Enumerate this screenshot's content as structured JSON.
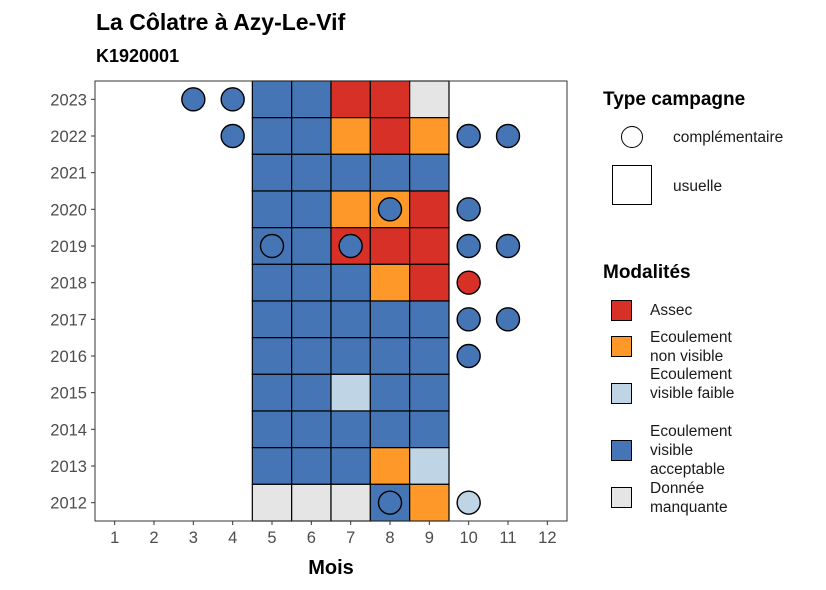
{
  "chart_data": {
    "type": "heatmap",
    "title": "La Côlatre à Azy-Le-Vif",
    "subtitle": "K1920001",
    "xlabel": "Mois",
    "ylabel": "",
    "x_ticks": [
      "1",
      "2",
      "3",
      "4",
      "5",
      "6",
      "7",
      "8",
      "9",
      "10",
      "11",
      "12"
    ],
    "y_ticks": [
      "2012",
      "2013",
      "2014",
      "2015",
      "2016",
      "2017",
      "2018",
      "2019",
      "2020",
      "2021",
      "2022",
      "2023"
    ],
    "xlim": [
      0.5,
      12.5
    ],
    "ylim": [
      2011.5,
      2023.5
    ],
    "colors": {
      "Assec": "#d73027",
      "Ecoulement non visible": "#fe9929",
      "Ecoulement visible faible": "#bfd5e5",
      "Ecoulement visible acceptable": "#4575b4",
      "Donnée manquante": "#e5e5e5"
    },
    "legend": {
      "type_title": "Type campagne",
      "type_items": [
        {
          "label": "complémentaire",
          "shape": "circle"
        },
        {
          "label": "usuelle",
          "shape": "square"
        }
      ],
      "modalites_title": "Modalités",
      "modalites_items": [
        {
          "label": "Assec",
          "color": "#d73027"
        },
        {
          "label": "Ecoulement non visible",
          "color": "#fe9929"
        },
        {
          "label": "Ecoulement visible faible",
          "color": "#bfd5e5"
        },
        {
          "label": "Ecoulement visible acceptable",
          "color": "#4575b4"
        },
        {
          "label": "Donnée manquante",
          "color": "#e5e5e5"
        }
      ]
    },
    "usuelle": [
      {
        "year": 2023,
        "cells": {
          "5": "Ecoulement visible acceptable",
          "6": "Ecoulement visible acceptable",
          "7": "Assec",
          "8": "Assec",
          "9": "Donnée manquante"
        }
      },
      {
        "year": 2022,
        "cells": {
          "5": "Ecoulement visible acceptable",
          "6": "Ecoulement visible acceptable",
          "7": "Ecoulement non visible",
          "8": "Assec",
          "9": "Ecoulement non visible"
        }
      },
      {
        "year": 2021,
        "cells": {
          "5": "Ecoulement visible acceptable",
          "6": "Ecoulement visible acceptable",
          "7": "Ecoulement visible acceptable",
          "8": "Ecoulement visible acceptable",
          "9": "Ecoulement visible acceptable"
        }
      },
      {
        "year": 2020,
        "cells": {
          "5": "Ecoulement visible acceptable",
          "6": "Ecoulement visible acceptable",
          "7": "Ecoulement non visible",
          "8": "Ecoulement non visible",
          "9": "Assec"
        }
      },
      {
        "year": 2019,
        "cells": {
          "5": "Ecoulement visible acceptable",
          "6": "Ecoulement visible acceptable",
          "7": "Assec",
          "8": "Assec",
          "9": "Assec"
        }
      },
      {
        "year": 2018,
        "cells": {
          "5": "Ecoulement visible acceptable",
          "6": "Ecoulement visible acceptable",
          "7": "Ecoulement visible acceptable",
          "8": "Ecoulement non visible",
          "9": "Assec"
        }
      },
      {
        "year": 2017,
        "cells": {
          "5": "Ecoulement visible acceptable",
          "6": "Ecoulement visible acceptable",
          "7": "Ecoulement visible acceptable",
          "8": "Ecoulement visible acceptable",
          "9": "Ecoulement visible acceptable"
        }
      },
      {
        "year": 2016,
        "cells": {
          "5": "Ecoulement visible acceptable",
          "6": "Ecoulement visible acceptable",
          "7": "Ecoulement visible acceptable",
          "8": "Ecoulement visible acceptable",
          "9": "Ecoulement visible acceptable"
        }
      },
      {
        "year": 2015,
        "cells": {
          "5": "Ecoulement visible acceptable",
          "6": "Ecoulement visible acceptable",
          "7": "Ecoulement visible faible",
          "8": "Ecoulement visible acceptable",
          "9": "Ecoulement visible acceptable"
        }
      },
      {
        "year": 2014,
        "cells": {
          "5": "Ecoulement visible acceptable",
          "6": "Ecoulement visible acceptable",
          "7": "Ecoulement visible acceptable",
          "8": "Ecoulement visible acceptable",
          "9": "Ecoulement visible acceptable"
        }
      },
      {
        "year": 2013,
        "cells": {
          "5": "Ecoulement visible acceptable",
          "6": "Ecoulement visible acceptable",
          "7": "Ecoulement visible acceptable",
          "8": "Ecoulement non visible",
          "9": "Ecoulement visible faible"
        }
      },
      {
        "year": 2012,
        "cells": {
          "5": "Donnée manquante",
          "6": "Donnée manquante",
          "7": "Donnée manquante",
          "8": "Ecoulement visible acceptable",
          "9": "Ecoulement non visible"
        }
      }
    ],
    "complementaire": [
      {
        "year": 2023,
        "month": 3,
        "modalite": "Ecoulement visible acceptable"
      },
      {
        "year": 2023,
        "month": 4,
        "modalite": "Ecoulement visible acceptable"
      },
      {
        "year": 2022,
        "month": 4,
        "modalite": "Ecoulement visible acceptable"
      },
      {
        "year": 2022,
        "month": 10,
        "modalite": "Ecoulement visible acceptable"
      },
      {
        "year": 2022,
        "month": 11,
        "modalite": "Ecoulement visible acceptable"
      },
      {
        "year": 2020,
        "month": 8,
        "modalite": "Ecoulement visible acceptable"
      },
      {
        "year": 2020,
        "month": 10,
        "modalite": "Ecoulement visible acceptable"
      },
      {
        "year": 2019,
        "month": 5,
        "modalite": "Ecoulement visible acceptable"
      },
      {
        "year": 2019,
        "month": 7,
        "modalite": "Ecoulement visible acceptable"
      },
      {
        "year": 2019,
        "month": 10,
        "modalite": "Ecoulement visible acceptable"
      },
      {
        "year": 2019,
        "month": 11,
        "modalite": "Ecoulement visible acceptable"
      },
      {
        "year": 2018,
        "month": 10,
        "modalite": "Assec"
      },
      {
        "year": 2017,
        "month": 10,
        "modalite": "Ecoulement visible acceptable"
      },
      {
        "year": 2017,
        "month": 11,
        "modalite": "Ecoulement visible acceptable"
      },
      {
        "year": 2016,
        "month": 10,
        "modalite": "Ecoulement visible acceptable"
      },
      {
        "year": 2012,
        "month": 8,
        "modalite": "Ecoulement visible acceptable"
      },
      {
        "year": 2012,
        "month": 10,
        "modalite": "Ecoulement visible faible"
      }
    ]
  }
}
